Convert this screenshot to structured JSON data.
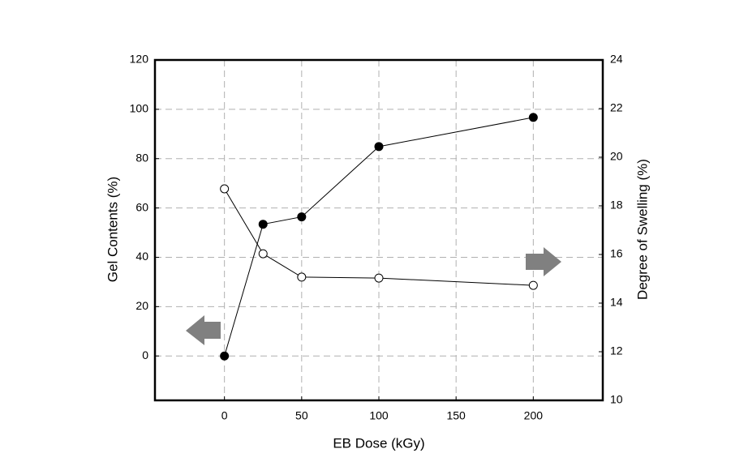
{
  "chart_data": {
    "type": "line",
    "x_label": "EB Dose (kGy)",
    "y_label": "Gel Contents (%)",
    "y2_label": "Degree of Swelling (%)",
    "x": [
      0,
      25,
      50,
      100,
      200
    ],
    "series": [
      {
        "color": "#000000",
        "marker_fill": "#000000",
        "values": [
          0,
          53.4,
          56.4,
          84.9,
          96.7
        ]
      },
      {
        "color": "#000000",
        "marker_fill": "#ffffff",
        "axis": "y2",
        "values": [
          18.7,
          16.03,
          15.07,
          15.03,
          14.73
        ]
      }
    ],
    "xlim": [
      -45,
      245
    ],
    "xticks": [
      0,
      50,
      100,
      150,
      200
    ],
    "ylim": [
      -18,
      120
    ],
    "yticks": [
      0,
      20,
      40,
      60,
      80,
      100,
      120
    ],
    "y2lim": [
      10,
      24
    ],
    "y2ticks": [
      10,
      12,
      14,
      16,
      18,
      20,
      22,
      24
    ],
    "grid": true
  }
}
